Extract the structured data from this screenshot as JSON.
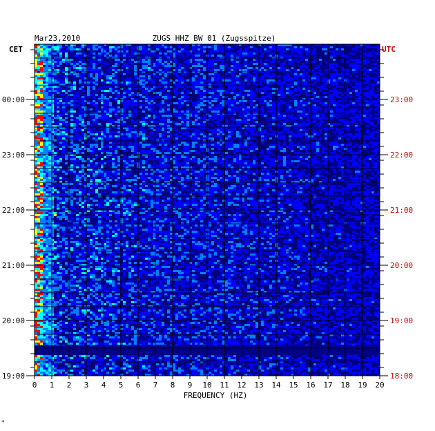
{
  "chart_data": {
    "type": "heatmap",
    "date": "Mar23,2010",
    "title": "ZUGS HHZ BW 01 (Zugsspitze)",
    "xlabel": "FREQUENCY (HZ)",
    "x_ticks": [
      0,
      1,
      2,
      3,
      4,
      5,
      6,
      7,
      8,
      9,
      10,
      11,
      12,
      13,
      14,
      15,
      16,
      17,
      18,
      19,
      20
    ],
    "xlim": [
      0,
      20
    ],
    "left_timezone": "CET",
    "right_timezone": "UTC",
    "left_time_labels": [
      "00:00",
      "23:00",
      "22:00",
      "21:00",
      "20:00",
      "19:00"
    ],
    "right_time_labels": [
      "23:00",
      "22:00",
      "21:00",
      "20:00",
      "19:00",
      "18:00"
    ],
    "colormap": [
      "#00007f",
      "#0000ff",
      "#0080ff",
      "#00ffff",
      "#ffff00",
      "#ff0000"
    ],
    "grid": true,
    "footnote": "*"
  }
}
